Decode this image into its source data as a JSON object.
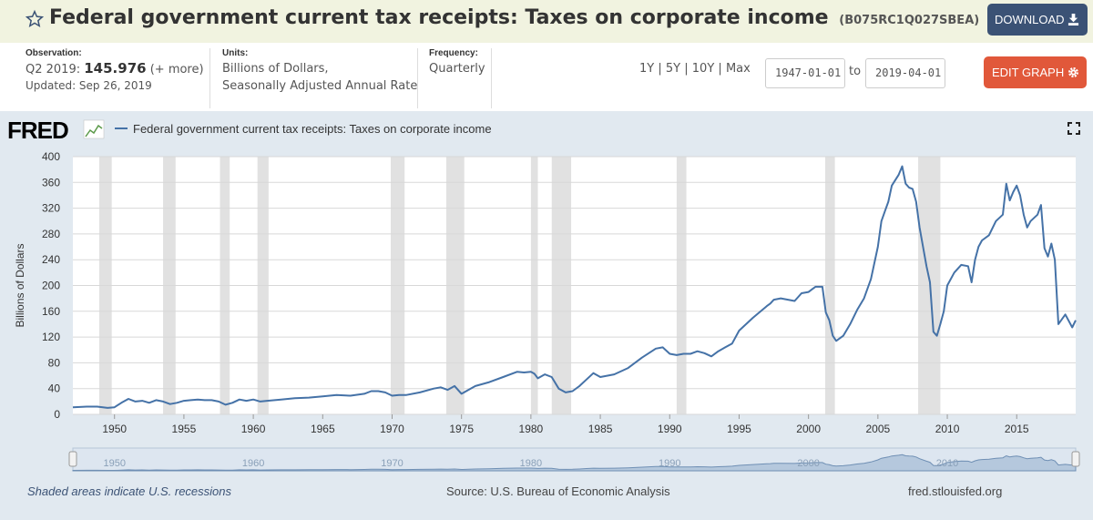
{
  "header": {
    "title": "Federal government current tax receipts: Taxes on corporate income",
    "series_id": "(B075RC1Q027SBEA)",
    "download_label": "DOWNLOAD",
    "star_icon": "star-icon",
    "download_icon": "download-icon"
  },
  "meta": {
    "observation_label": "Observation:",
    "observation_period": "Q2 2019:",
    "observation_value": "145.976",
    "observation_more": "(+ more)",
    "updated": "Updated: Sep 26, 2019",
    "units_label": "Units:",
    "units_line1": "Billions of Dollars,",
    "units_line2": "Seasonally Adjusted Annual Rate",
    "frequency_label": "Frequency:",
    "frequency_value": "Quarterly"
  },
  "controls": {
    "range_links": [
      "1Y",
      "5Y",
      "10Y",
      "Max"
    ],
    "separator": "|",
    "start_date": "1947-01-01",
    "to_label": "to",
    "end_date": "2019-04-01",
    "edit_label": "EDIT GRAPH",
    "edit_icon": "gear-icon",
    "fullscreen_icon": "fullscreen-icon"
  },
  "footer": {
    "note": "Shaded areas indicate U.S. recessions",
    "source": "Source: U.S. Bureau of Economic Analysis",
    "site": "fred.stlouisfed.org"
  },
  "colors": {
    "line": "#4572a7",
    "recession": "#e1e1e1",
    "panel": "#e1e9f0",
    "title_bar": "#f1f3e0",
    "download_button": "#3b5275",
    "edit_button": "#e1583a"
  },
  "chart_data": {
    "type": "line",
    "logo": "FRED",
    "legend": "Federal government current tax receipts: Taxes on corporate income",
    "ylabel": "Billions of Dollars",
    "xlabel": "",
    "xlim": [
      1947.0,
      2019.25
    ],
    "ylim": [
      0,
      400
    ],
    "yticks": [
      0,
      40,
      80,
      120,
      160,
      200,
      240,
      280,
      320,
      360,
      400
    ],
    "xticks": [
      1950,
      1955,
      1960,
      1965,
      1970,
      1975,
      1980,
      1985,
      1990,
      1995,
      2000,
      2005,
      2010,
      2015
    ],
    "navigator_ticks": [
      1950,
      1960,
      1970,
      1980,
      1990,
      2000,
      2010
    ],
    "grid": true,
    "recessions": [
      [
        1948.9,
        1949.8
      ],
      [
        1953.5,
        1954.4
      ],
      [
        1957.6,
        1958.3
      ],
      [
        1960.3,
        1961.1
      ],
      [
        1969.9,
        1970.9
      ],
      [
        1973.9,
        1975.2
      ],
      [
        1980.0,
        1980.5
      ],
      [
        1981.5,
        1982.9
      ],
      [
        1990.5,
        1991.2
      ],
      [
        2001.2,
        2001.9
      ],
      [
        2007.9,
        2009.5
      ]
    ],
    "series": [
      {
        "x": [
          1947.0,
          1948.0,
          1948.75,
          1949.5,
          1950.0,
          1950.5,
          1951.0,
          1951.5,
          1952.0,
          1952.5,
          1953.0,
          1953.5,
          1954.0,
          1954.5,
          1955.0,
          1955.5,
          1956.0,
          1956.5,
          1957.0,
          1957.5,
          1958.0,
          1958.5,
          1959.0,
          1959.5,
          1960.0,
          1960.5,
          1961.0,
          1962.0,
          1963.0,
          1964.0,
          1965.0,
          1966.0,
          1967.0,
          1968.0,
          1968.5,
          1969.0,
          1969.5,
          1970.0,
          1970.5,
          1971.0,
          1972.0,
          1973.0,
          1973.5,
          1974.0,
          1974.5,
          1975.0,
          1975.5,
          1976.0,
          1977.0,
          1978.0,
          1979.0,
          1979.5,
          1980.0,
          1980.25,
          1980.5,
          1981.0,
          1981.5,
          1982.0,
          1982.5,
          1983.0,
          1983.5,
          1984.0,
          1984.5,
          1985.0,
          1986.0,
          1987.0,
          1988.0,
          1989.0,
          1989.5,
          1990.0,
          1990.5,
          1991.0,
          1991.5,
          1992.0,
          1992.5,
          1993.0,
          1993.5,
          1994.0,
          1994.5,
          1995.0,
          1996.0,
          1997.0,
          1997.25,
          1997.5,
          1998.0,
          1999.0,
          1999.5,
          2000.0,
          2000.25,
          2000.5,
          2001.0,
          2001.25,
          2001.5,
          2001.75,
          2002.0,
          2002.5,
          2003.0,
          2003.5,
          2004.0,
          2004.5,
          2005.0,
          2005.25,
          2005.5,
          2005.75,
          2006.0,
          2006.5,
          2006.75,
          2007.0,
          2007.25,
          2007.5,
          2007.75,
          2008.0,
          2008.5,
          2008.75,
          2009.0,
          2009.25,
          2009.5,
          2009.75,
          2010.0,
          2010.5,
          2011.0,
          2011.5,
          2011.75,
          2012.0,
          2012.25,
          2012.5,
          2013.0,
          2013.5,
          2014.0,
          2014.25,
          2014.5,
          2014.75,
          2015.0,
          2015.25,
          2015.5,
          2015.75,
          2016.0,
          2016.5,
          2016.75,
          2017.0,
          2017.25,
          2017.5,
          2017.75,
          2018.0,
          2018.5,
          2019.0,
          2019.25
        ],
        "y": [
          11,
          12,
          12,
          10,
          11,
          18,
          24,
          20,
          21,
          18,
          22,
          20,
          16,
          18,
          21,
          22,
          23,
          22,
          22,
          20,
          15,
          18,
          23,
          21,
          23,
          20,
          21,
          23,
          25,
          26,
          28,
          30,
          29,
          32,
          36,
          36,
          34,
          29,
          30,
          30,
          34,
          40,
          42,
          38,
          44,
          32,
          38,
          44,
          50,
          58,
          66,
          65,
          66,
          63,
          56,
          62,
          58,
          40,
          34,
          36,
          44,
          54,
          64,
          58,
          62,
          72,
          88,
          102,
          104,
          94,
          92,
          94,
          94,
          98,
          95,
          90,
          98,
          104,
          110,
          130,
          150,
          168,
          172,
          178,
          180,
          176,
          188,
          190,
          194,
          198,
          198,
          158,
          146,
          122,
          114,
          122,
          140,
          162,
          180,
          210,
          260,
          300,
          315,
          330,
          355,
          372,
          385,
          358,
          352,
          350,
          330,
          290,
          230,
          205,
          128,
          122,
          140,
          160,
          200,
          220,
          232,
          230,
          205,
          240,
          260,
          270,
          278,
          300,
          310,
          358,
          332,
          345,
          355,
          340,
          310,
          290,
          300,
          310,
          325,
          258,
          245,
          265,
          240,
          140,
          155,
          135,
          146
        ]
      }
    ]
  }
}
